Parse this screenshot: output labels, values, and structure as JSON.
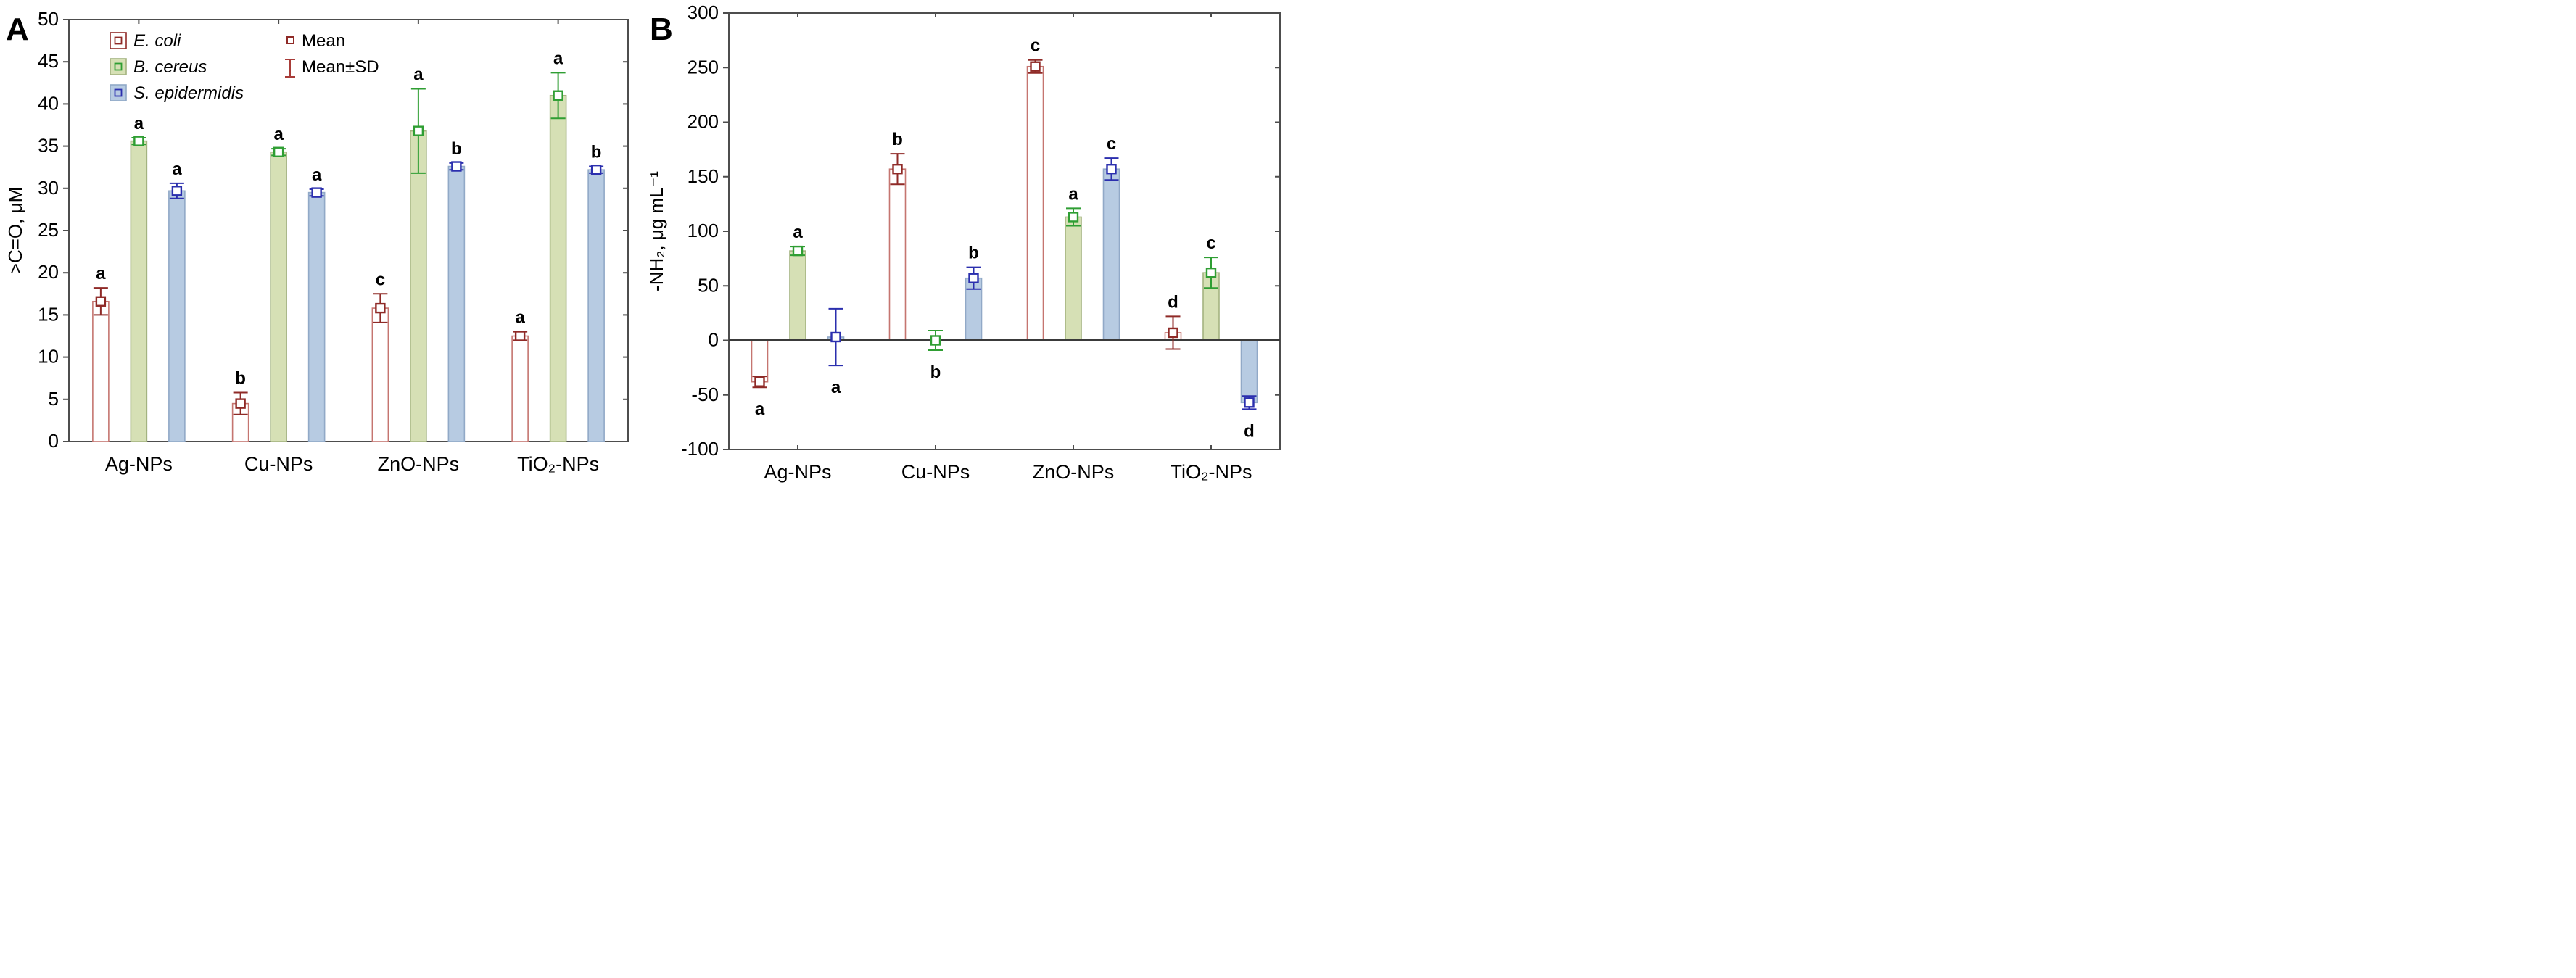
{
  "figure_title": "",
  "chart_data": [
    {
      "type": "bar",
      "panel_label": "A",
      "title": "",
      "xlabel": "",
      "ylabel": ">C=O, μM",
      "y_axis": {
        "min": 0,
        "max": 50,
        "tick_step": 5
      },
      "grid": false,
      "legend_position": "top-left-inside",
      "categories": [
        "Ag-NPs",
        "Cu-NPs",
        "ZnO-NPs",
        "TiO₂-NPs"
      ],
      "series": [
        {
          "name": "E. coli",
          "values": [
            16.6,
            4.5,
            15.8,
            12.5
          ],
          "sd": [
            1.6,
            1.3,
            1.7,
            0.5
          ],
          "letters": [
            "a",
            "b",
            "c",
            "a"
          ],
          "letter_below": [
            false,
            false,
            false,
            false
          ],
          "fill": "#ffffff",
          "edge": "#c57570",
          "marker": "#8f2a27"
        },
        {
          "name": "B. cereus",
          "values": [
            35.6,
            34.3,
            36.8,
            41.0
          ],
          "sd": [
            0.4,
            0.4,
            5.0,
            2.7
          ],
          "letters": [
            "a",
            "a",
            "a",
            "a"
          ],
          "letter_below": [
            false,
            false,
            false,
            false
          ],
          "fill": "#d6e0b5",
          "edge": "#a3b380",
          "marker": "#2f9e33"
        },
        {
          "name": "S. epidermidis",
          "values": [
            29.7,
            29.5,
            32.6,
            32.2
          ],
          "sd": [
            0.9,
            0.4,
            0.4,
            0.4
          ],
          "letters": [
            "a",
            "a",
            "b",
            "b"
          ],
          "letter_below": [
            false,
            false,
            false,
            false
          ],
          "fill": "#b7cbe2",
          "edge": "#91a9c7",
          "marker": "#2b2fae"
        }
      ],
      "legend": {
        "species": [
          "E. coli",
          "B. cereus",
          "S. epidermidis"
        ],
        "mean_label": "Mean",
        "sd_label": "Mean±SD"
      }
    },
    {
      "type": "bar",
      "panel_label": "B",
      "title": "",
      "xlabel": "",
      "ylabel": "-NH₂, μg mL⁻¹",
      "y_axis": {
        "min": -100,
        "max": 300,
        "tick_step": 50
      },
      "grid": false,
      "legend_position": "none",
      "categories": [
        "Ag-NPs",
        "Cu-NPs",
        "ZnO-NPs",
        "TiO₂-NPs"
      ],
      "series": [
        {
          "name": "E. coli",
          "values": [
            -38,
            157,
            251,
            7
          ],
          "sd": [
            5,
            14,
            6,
            15
          ],
          "letters": [
            "a",
            "b",
            "c",
            "d"
          ],
          "letter_below": [
            true,
            false,
            false,
            false
          ],
          "fill": "#ffffff",
          "edge": "#c57570",
          "marker": "#8f2a27"
        },
        {
          "name": "B. cereus",
          "values": [
            82,
            0,
            113,
            62
          ],
          "sd": [
            4,
            9,
            8,
            14
          ],
          "letters": [
            "a",
            "b",
            "a",
            "c"
          ],
          "letter_below": [
            false,
            true,
            false,
            false
          ],
          "fill": "#d6e0b5",
          "edge": "#a3b380",
          "marker": "#2f9e33"
        },
        {
          "name": "S. epidermidis",
          "values": [
            3,
            57,
            157,
            -57
          ],
          "sd": [
            26,
            10,
            10,
            6
          ],
          "letters": [
            "a",
            "b",
            "c",
            "d"
          ],
          "letter_below": [
            true,
            false,
            false,
            true
          ],
          "fill": "#b7cbe2",
          "edge": "#91a9c7",
          "marker": "#2b2fae"
        }
      ],
      "legend": null
    }
  ]
}
